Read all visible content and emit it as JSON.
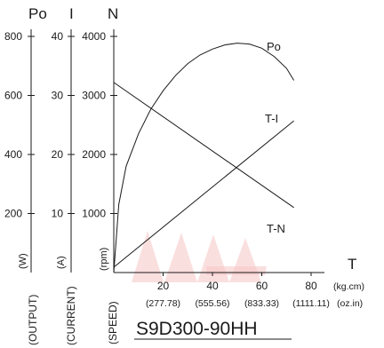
{
  "chart_data": {
    "type": "line",
    "model": "S9D300-90HH",
    "x_axis": {
      "label": "T",
      "unit_main": "(kg.cm)",
      "unit_alt": "(oz.in)",
      "ticks": [
        20,
        40,
        60,
        80
      ],
      "alt_ticks": [
        "(277.78)",
        "(555.56)",
        "(833.33)",
        "(1111.11)"
      ],
      "range": [
        0,
        80
      ]
    },
    "y_axes": [
      {
        "id": "po",
        "head": "Po",
        "unit": "(W)",
        "label": "(OUTPUT)",
        "ticks": [
          200,
          400,
          600,
          800
        ],
        "range": [
          0,
          800
        ]
      },
      {
        "id": "i",
        "head": "I",
        "unit": "(A)",
        "label": "(CURRENT)",
        "ticks": [
          10,
          20,
          30,
          40
        ],
        "range": [
          0,
          40
        ]
      },
      {
        "id": "n",
        "head": "N",
        "unit": "(rpm)",
        "label": "(SPEED)",
        "ticks": [
          1000,
          2000,
          3000,
          4000
        ],
        "range": [
          0,
          4000
        ]
      }
    ],
    "series": [
      {
        "name": "Po",
        "axis": "po",
        "x": [
          0,
          2,
          5,
          10,
          15,
          20,
          25,
          30,
          35,
          40,
          45,
          50,
          55,
          60,
          65,
          70,
          73
        ],
        "y": [
          0,
          230,
          360,
          470,
          553,
          616,
          667,
          708,
          737,
          757,
          771,
          777,
          774,
          760,
          732,
          692,
          651
        ]
      },
      {
        "name": "T-I",
        "axis": "i",
        "x": [
          0,
          73
        ],
        "y": [
          0.9,
          25.7
        ]
      },
      {
        "name": "T-N",
        "axis": "n",
        "x": [
          0,
          73
        ],
        "y": [
          3220,
          1100
        ]
      }
    ],
    "grid": false,
    "legend": "none"
  }
}
